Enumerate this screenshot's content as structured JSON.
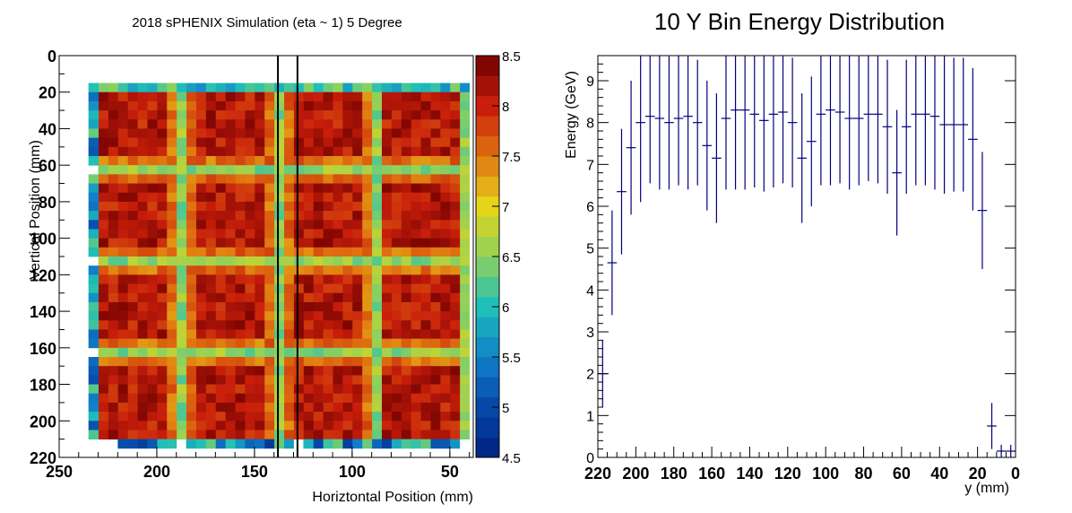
{
  "chart_data": [
    {
      "type": "heatmap",
      "title": "2018 sPHENIX Simulation (eta ~ 1) 5 Degree",
      "xlabel": "Horiztontal Position (mm)",
      "ylabel": "Vertical Position (mm)",
      "xlim": [
        250,
        38
      ],
      "ylim": [
        220,
        0
      ],
      "x_ticks": [
        "250",
        "200",
        "150",
        "100",
        "50"
      ],
      "y_ticks": [
        "0",
        "20",
        "40",
        "60",
        "80",
        "100",
        "120",
        "140",
        "160",
        "180",
        "200",
        "220"
      ],
      "colorbar": {
        "min": 4.5,
        "max": 8.5,
        "ticks": [
          "4.5",
          "5",
          "5.5",
          "6",
          "6.5",
          "7",
          "7.5",
          "8",
          "8.5"
        ]
      },
      "bin_size_mm": 5,
      "x_range_mm": [
        40,
        235
      ],
      "y_range_mm": [
        15,
        215
      ],
      "towers": {
        "x_bands_mm": [
          [
            40,
            89
          ],
          [
            89,
            138
          ],
          [
            138,
            187
          ],
          [
            187,
            235
          ]
        ],
        "y_bands_mm": [
          [
            15,
            62
          ],
          [
            62,
            112
          ],
          [
            112,
            162
          ],
          [
            162,
            215
          ]
        ],
        "plateau": 8.0,
        "edge": 6.2
      },
      "vertical_lines_mm": [
        138,
        128
      ],
      "colors_hex": {
        "low": "#00207f",
        "mid": "#1ebfb8",
        "green": "#8fd15c",
        "yellow": "#e5d51a",
        "orange": "#e07310",
        "red": "#c81e0b",
        "high": "#6e0000",
        "lines": "#000000"
      }
    },
    {
      "type": "scatter",
      "title": "10 Y Bin Energy Distribution",
      "xlabel": "y (mm)",
      "ylabel": "Energy (GeV)",
      "xlim": [
        220,
        0
      ],
      "ylim": [
        0,
        9.6
      ],
      "x_ticks": [
        "220",
        "200",
        "180",
        "160",
        "140",
        "120",
        "100",
        "80",
        "60",
        "40",
        "20",
        "0"
      ],
      "y_ticks": [
        "0",
        "1",
        "2",
        "3",
        "4",
        "5",
        "6",
        "7",
        "8",
        "9"
      ],
      "bin_width_mm": 5,
      "bin_centers_mm": [
        217.5,
        212.5,
        207.5,
        202.5,
        197.5,
        192.5,
        187.5,
        182.5,
        177.5,
        172.5,
        167.5,
        162.5,
        157.5,
        152.5,
        147.5,
        142.5,
        137.5,
        132.5,
        127.5,
        122.5,
        117.5,
        112.5,
        107.5,
        102.5,
        97.5,
        92.5,
        87.5,
        82.5,
        77.5,
        72.5,
        67.5,
        62.5,
        57.5,
        52.5,
        47.5,
        42.5,
        37.5,
        32.5,
        27.5,
        22.5,
        17.5,
        12.5,
        7.5,
        2.5
      ],
      "values": [
        2.0,
        4.65,
        6.35,
        7.4,
        8.0,
        8.15,
        8.1,
        8.0,
        8.1,
        8.15,
        8.0,
        7.45,
        7.15,
        8.1,
        8.3,
        8.3,
        8.2,
        8.05,
        8.2,
        8.25,
        8.0,
        7.15,
        7.55,
        8.2,
        8.3,
        8.25,
        8.1,
        8.1,
        8.2,
        8.2,
        7.9,
        6.8,
        7.9,
        8.2,
        8.2,
        8.15,
        7.95,
        7.95,
        7.95,
        7.6,
        5.9,
        0.75,
        0.15,
        0.15
      ],
      "errors": [
        0.8,
        1.25,
        1.5,
        1.6,
        1.9,
        1.6,
        1.7,
        1.6,
        1.6,
        1.75,
        1.5,
        1.55,
        1.55,
        1.7,
        1.9,
        1.9,
        1.75,
        1.7,
        1.75,
        1.7,
        1.55,
        1.55,
        1.55,
        1.7,
        1.8,
        1.7,
        1.7,
        1.6,
        1.6,
        1.65,
        1.6,
        1.5,
        1.6,
        1.7,
        1.7,
        1.75,
        1.65,
        1.6,
        1.6,
        1.7,
        1.4,
        0.55,
        0.15,
        0.15
      ],
      "colors_hex": {
        "series": "#000080"
      }
    }
  ]
}
